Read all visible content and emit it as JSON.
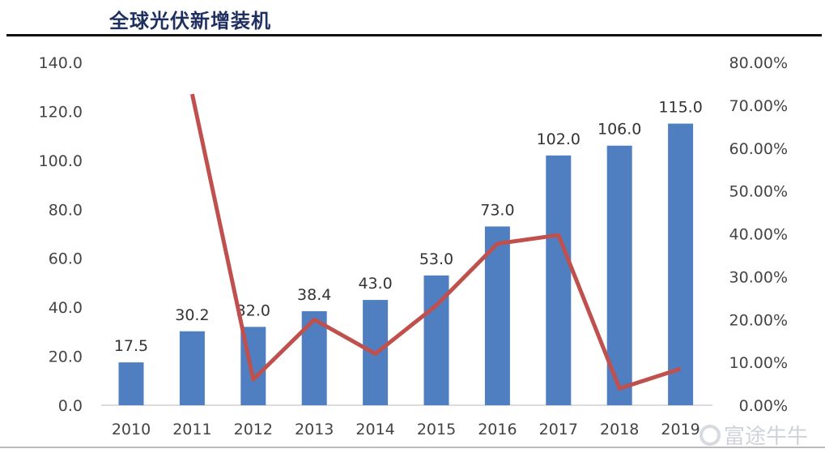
{
  "title": "全球光伏新增装机",
  "watermark": "富途牛牛",
  "chart_data": {
    "type": "bar+line",
    "title": "全球光伏新增装机",
    "categories": [
      "2010",
      "2011",
      "2012",
      "2013",
      "2014",
      "2015",
      "2016",
      "2017",
      "2018",
      "2019"
    ],
    "series": [
      {
        "type": "bar",
        "axis": "left",
        "values": [
          17.5,
          30.2,
          32.0,
          38.4,
          43.0,
          53.0,
          73.0,
          102.0,
          106.0,
          115.0
        ],
        "data_labels": [
          "17.5",
          "30.2",
          "32.0",
          "38.4",
          "43.0",
          "53.0",
          "73.0",
          "102.0",
          "106.0",
          "115.0"
        ],
        "color": "#4f7fc0"
      },
      {
        "type": "line",
        "axis": "right",
        "values": [
          null,
          72.6,
          6.0,
          20.0,
          12.0,
          23.3,
          37.7,
          39.7,
          3.9,
          8.5
        ],
        "color": "#c0504d"
      }
    ],
    "ylim_left": [
      0,
      140
    ],
    "yticks_left": [
      "0.0",
      "20.0",
      "40.0",
      "60.0",
      "80.0",
      "100.0",
      "120.0",
      "140.0"
    ],
    "ylim_right": [
      0,
      80
    ],
    "yticks_right": [
      "0.00%",
      "10.00%",
      "20.00%",
      "30.00%",
      "40.00%",
      "50.00%",
      "60.00%",
      "70.00%",
      "80.00%"
    ],
    "grid": false,
    "legend": "none"
  }
}
